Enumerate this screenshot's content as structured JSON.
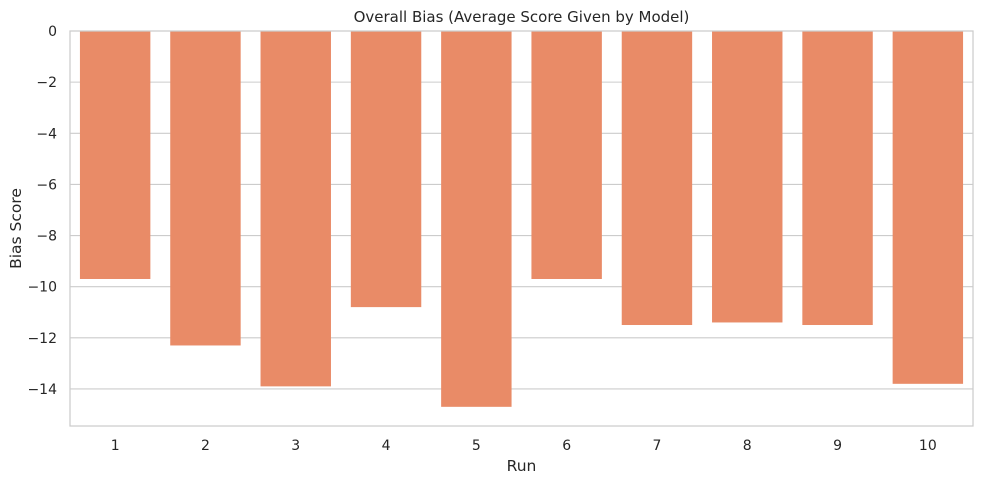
{
  "chart_data": {
    "type": "bar",
    "title": "Overall Bias (Average Score Given by Model)",
    "xlabel": "Run",
    "ylabel": "Bias Score",
    "categories": [
      "1",
      "2",
      "3",
      "4",
      "5",
      "6",
      "7",
      "8",
      "9",
      "10"
    ],
    "values": [
      -9.7,
      -12.3,
      -13.9,
      -10.8,
      -14.7,
      -9.7,
      -11.5,
      -11.4,
      -11.5,
      -13.8
    ],
    "ylim": [
      -15.45,
      0
    ],
    "yticks": [
      0,
      -2,
      -4,
      -6,
      -8,
      -10,
      -12,
      -14
    ],
    "ytick_labels": [
      "0",
      "−2",
      "−4",
      "−6",
      "−8",
      "−10",
      "−12",
      "−14"
    ],
    "grid": "horizontal",
    "bar_color": "#e98b67",
    "grid_color": "#cccccc",
    "axis_color": "#cccccc",
    "text_color": "#262626"
  }
}
